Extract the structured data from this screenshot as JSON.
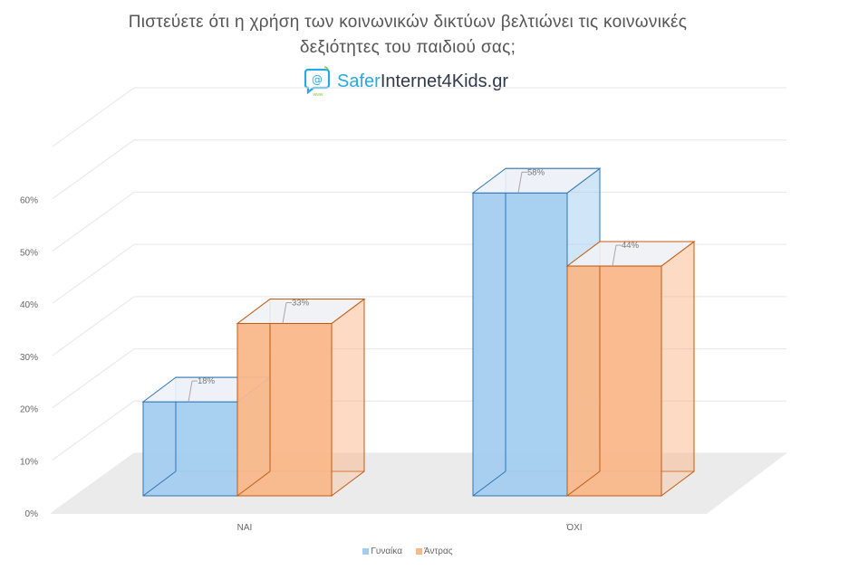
{
  "title_line1": "Πιστεύετε ότι η χρήση των κοινωνικών δικτύων βελτιώνει τις κοινωνικές",
  "title_line2": "δεξιότητες του παιδιού σας;",
  "logo": {
    "part1": "Safer",
    "part2": "Internet4Kids",
    "part3": ".gr",
    "badge": "www"
  },
  "colors": {
    "series1_fill": "#a4cdf0",
    "series1_stroke": "#2e75b6",
    "series2_fill": "#f9b88a",
    "series2_stroke": "#c55a11"
  },
  "chart_data": {
    "type": "bar",
    "categories": [
      "ΝΑΙ",
      "ΌΧΙ"
    ],
    "series": [
      {
        "name": "Γυναίκα",
        "values": [
          18,
          58
        ],
        "labels": [
          "18%",
          "58%"
        ]
      },
      {
        "name": "Άντρας",
        "values": [
          33,
          44
        ],
        "labels": [
          "33%",
          "44%"
        ]
      }
    ],
    "ylim": [
      0,
      70
    ],
    "yticks": [
      "0%",
      "10%",
      "20%",
      "30%",
      "40%",
      "50%",
      "60%"
    ],
    "legend_position": "bottom",
    "grid": true,
    "style": "3d-column"
  }
}
